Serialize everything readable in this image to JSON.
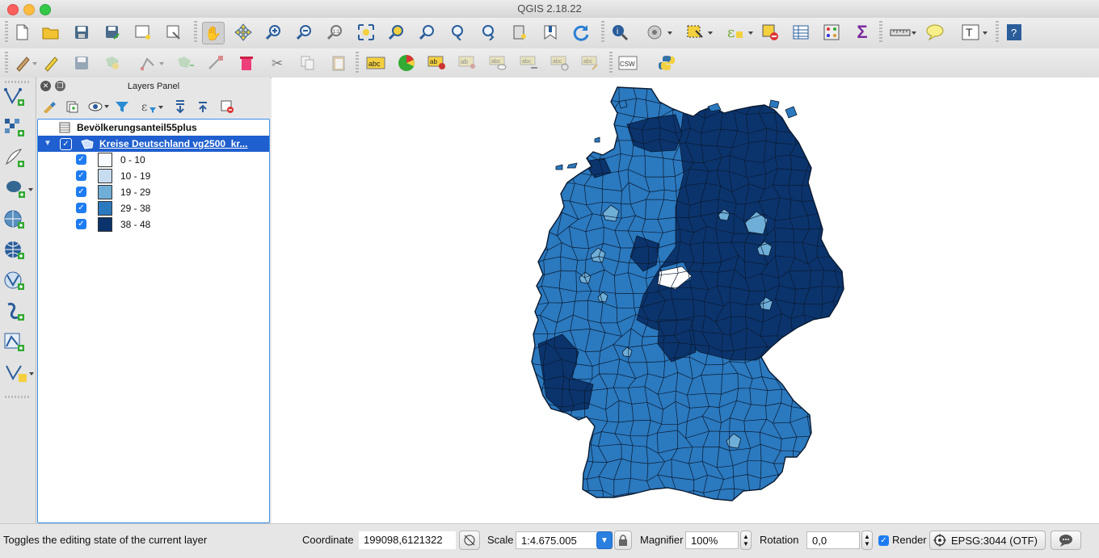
{
  "window": {
    "title": "QGIS 2.18.22"
  },
  "layers_panel": {
    "title": "Layers Panel",
    "group_name": "Bevölkerungsanteil55plus",
    "layer_name": "Kreise Deutschland vg2500_kr...",
    "legend": [
      {
        "label": "0 - 10",
        "color": "#f7fbff"
      },
      {
        "label": "10 - 19",
        "color": "#c8dcf0"
      },
      {
        "label": "19 - 29",
        "color": "#6faed7"
      },
      {
        "label": "29 - 38",
        "color": "#2b79bf"
      },
      {
        "label": "38 - 48",
        "color": "#0b346d"
      }
    ]
  },
  "status": {
    "message": "Toggles the editing state of the current layer",
    "coordinate_label": "Coordinate",
    "coordinate_value": "199098,6121322",
    "scale_label": "Scale",
    "scale_value": "1:4.675.005",
    "magnifier_label": "Magnifier",
    "magnifier_value": "100%",
    "rotation_label": "Rotation",
    "rotation_value": "0,0",
    "render_label": "Render",
    "crs_label": "EPSG:3044 (OTF)"
  },
  "map_colors": {
    "mid": "#2b79bf",
    "dark": "#0b346d",
    "light": "#6faed7",
    "border": "#0a1a30"
  }
}
